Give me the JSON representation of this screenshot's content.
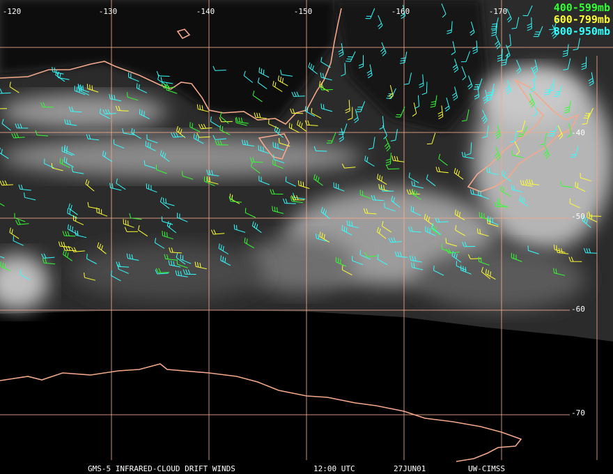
{
  "map": {
    "longitude_labels": [
      "-120",
      "-130",
      "-140",
      "-150",
      "-160",
      "-170"
    ],
    "latitude_labels": [
      "-40",
      "-50",
      "-60",
      "-70"
    ],
    "legend": [
      "400-599mb",
      "600-799mb",
      "800-950mb"
    ],
    "footer": [
      "GMS-5 INFRARED-CLOUD DRIFT WINDS",
      "12:00 UTC",
      "27JUN01",
      "UW-CIMSS"
    ]
  }
}
